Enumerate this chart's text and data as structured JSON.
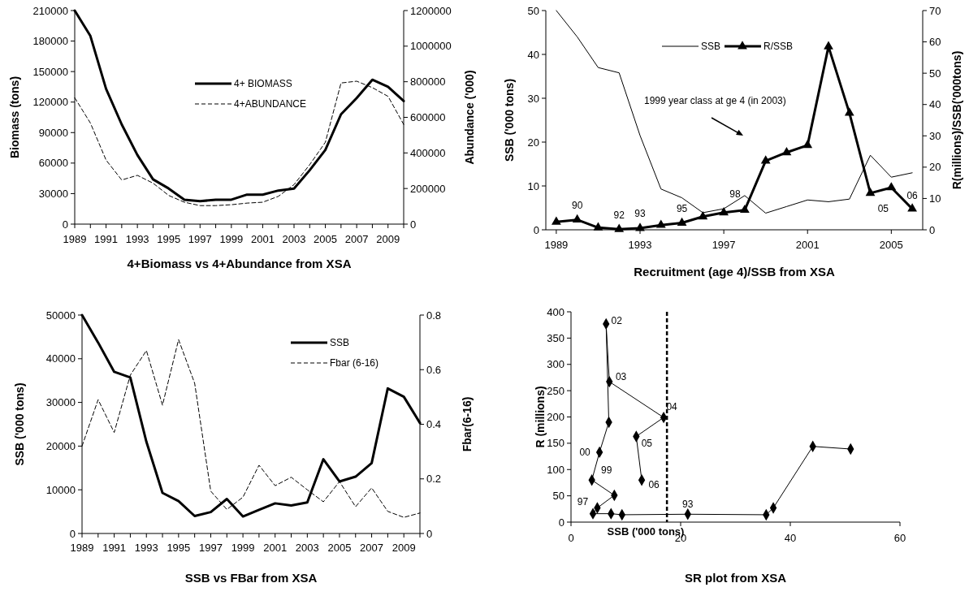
{
  "chart_data": [
    {
      "type": "line",
      "title": "4+Biomass vs 4+Abundance from XSA",
      "ylabel": "Biomass (tons)",
      "y2label": "Abundance ('000)",
      "x": [
        1989,
        1990,
        1991,
        1992,
        1993,
        1994,
        1995,
        1996,
        1997,
        1998,
        1999,
        2000,
        2001,
        2002,
        2003,
        2004,
        2005,
        2006,
        2007,
        2008,
        2009,
        2010
      ],
      "series": [
        {
          "name": "4+ BIOMASS",
          "color": "#000000",
          "line_style": "solid",
          "values": [
            210000,
            185000,
            133000,
            98000,
            68000,
            44000,
            35000,
            24000,
            22500,
            24000,
            24000,
            29000,
            29000,
            33000,
            35000,
            53000,
            73000,
            108000,
            124000,
            142000,
            135000,
            121000
          ]
        },
        {
          "name": "4+ABUNDANCE",
          "color": "#000000",
          "line_style": "dashed",
          "axis": "y2",
          "values": [
            710000,
            568000,
            360000,
            248000,
            274000,
            230000,
            161000,
            123000,
            104000,
            104000,
            109000,
            118000,
            123000,
            156000,
            222000,
            334000,
            460000,
            793000,
            803000,
            767000,
            718000,
            560000
          ]
        }
      ],
      "xlim": [
        1989,
        2010
      ],
      "xticks": [
        1989,
        {
          "value": 1990,
          "label": null
        },
        1991,
        {
          "value": 1992,
          "label": null
        },
        1993,
        {
          "value": 1994,
          "label": null
        },
        1995,
        {
          "value": 1996,
          "label": null
        },
        1997,
        {
          "value": 1998,
          "label": null
        },
        1999,
        {
          "value": 2000,
          "label": null
        },
        2001,
        {
          "value": 2002,
          "label": null
        },
        2003,
        {
          "value": 2004,
          "label": null
        },
        2005,
        {
          "value": 2006,
          "label": null
        },
        2007,
        {
          "value": 2008,
          "label": null
        },
        2009,
        {
          "value": 2010,
          "label": null
        }
      ],
      "ylim": [
        0,
        210000
      ],
      "yticks": [
        0,
        30000,
        60000,
        90000,
        120000,
        150000,
        180000,
        210000
      ],
      "y2lim": [
        0,
        1200000
      ],
      "y2ticks": [
        0,
        200000,
        400000,
        600000,
        800000,
        1000000,
        1200000
      ],
      "legend": "top"
    },
    {
      "type": "line",
      "title": "Recruitment (age 4)/SSB from XSA",
      "ylabel": "SSB ('000 tons)",
      "y2label": "R(millions)/SSB('000tons)",
      "annotations": [
        "1999 year class at ge 4 (in 2003)",
        {
          "text": "90",
          "x": 1990,
          "y": 2.3
        },
        {
          "text": "92",
          "x": 1992,
          "y": 0.1
        },
        {
          "text": "93",
          "x": 1993,
          "y": 0.4
        },
        {
          "text": "95",
          "x": 1995,
          "y": 1.6
        },
        {
          "text": "98",
          "x": 1998,
          "y": 4.5
        },
        {
          "text": "05",
          "x": 2005,
          "y": 9.6
        },
        {
          "text": "06",
          "x": 2006,
          "y": 4.8
        }
      ],
      "x": [
        1989,
        1990,
        1991,
        1992,
        1993,
        1994,
        1995,
        1996,
        1997,
        1998,
        1999,
        2000,
        2001,
        2002,
        2003,
        2004,
        2005,
        2006
      ],
      "series": [
        {
          "name": "SSB",
          "color": "#000000",
          "marker": "none",
          "values": [
            50,
            44,
            37,
            35.8,
            21.5,
            9.3,
            7.3,
            3.9,
            4.8,
            7.8,
            3.8,
            5.3,
            6.8,
            6.4,
            7,
            17,
            12,
            13
          ]
        },
        {
          "name": "R/SSB",
          "color": "#000000",
          "marker": "triangle",
          "axis": "y2",
          "values": [
            2.5,
            3.2,
            0.7,
            0.2,
            0.5,
            1.5,
            2.2,
            4.2,
            5.5,
            6.3,
            22,
            24.7,
            27,
            58.5,
            37.3,
            11.7,
            13.5,
            6.7
          ]
        }
      ],
      "xlim": [
        1988.5,
        2006.5
      ],
      "xticks": [
        1989,
        1993,
        1997,
        2001,
        2005
      ],
      "ylim": [
        0,
        50
      ],
      "yticks": [
        0,
        10,
        20,
        30,
        40,
        50
      ],
      "y2lim": [
        0,
        70
      ],
      "y2ticks": [
        0,
        10,
        20,
        30,
        40,
        50,
        60,
        70
      ],
      "legend": "top"
    },
    {
      "type": "line",
      "title": "SSB vs FBar from XSA",
      "ylabel": "SSB ('000 tons)",
      "y2label": "Fbar(6-16)",
      "x": [
        1989,
        1990,
        1991,
        1992,
        1993,
        1994,
        1995,
        1996,
        1997,
        1998,
        1999,
        2000,
        2001,
        2002,
        2003,
        2004,
        2005,
        2006,
        2007,
        2008,
        2009,
        2010
      ],
      "series": [
        {
          "name": "SSB",
          "color": "#000000",
          "line_style": "solid",
          "values": [
            50000,
            43700,
            37000,
            35700,
            21000,
            9300,
            7400,
            4000,
            4900,
            7900,
            3900,
            5400,
            6900,
            6400,
            7100,
            17000,
            11900,
            13000,
            16100,
            33200,
            31300,
            25300
          ]
        },
        {
          "name": "Fbar (6-16)",
          "color": "#000000",
          "line_style": "dashed",
          "axis": "y2",
          "values": [
            0.32,
            0.49,
            0.37,
            0.58,
            0.67,
            0.47,
            0.71,
            0.55,
            0.155,
            0.088,
            0.133,
            0.25,
            0.175,
            0.206,
            0.16,
            0.116,
            0.19,
            0.098,
            0.167,
            0.081,
            0.059,
            0.075
          ]
        }
      ],
      "xlim": [
        1989,
        2010
      ],
      "xticks": [
        1989,
        {
          "value": 1990,
          "label": null
        },
        1991,
        {
          "value": 1992,
          "label": null
        },
        1993,
        {
          "value": 1994,
          "label": null
        },
        1995,
        {
          "value": 1996,
          "label": null
        },
        1997,
        {
          "value": 1998,
          "label": null
        },
        1999,
        {
          "value": 2000,
          "label": null
        },
        2001,
        {
          "value": 2002,
          "label": null
        },
        2003,
        {
          "value": 2004,
          "label": null
        },
        2005,
        {
          "value": 2006,
          "label": null
        },
        2007,
        {
          "value": 2008,
          "label": null
        },
        2009,
        {
          "value": 2010,
          "label": null
        }
      ],
      "ylim": [
        0,
        50000
      ],
      "yticks": [
        0,
        10000,
        20000,
        30000,
        40000,
        50000
      ],
      "y2lim": [
        0,
        0.8
      ],
      "y2ticks": [
        0,
        0.2,
        0.4,
        0.6,
        0.8
      ],
      "legend": "top right"
    },
    {
      "type": "line",
      "title": "SR plot from XSA",
      "xlabel": "SSB ('000 tons)",
      "ylabel": "R (millions)",
      "marker": "diamond",
      "series": [
        {
          "color": "#000000",
          "x": [
            51,
            44.1,
            36.9,
            35.6,
            21.3,
            9.3,
            7.3,
            4,
            4.8,
            7.9,
            3.8,
            5.2,
            6.9,
            6.4,
            7,
            16.9,
            11.9,
            12.9
          ],
          "values": [
            139,
            144,
            27,
            14,
            15,
            14,
            16,
            16,
            27,
            51,
            80,
            133,
            190,
            377,
            267,
            199,
            163,
            80
          ]
        }
      ],
      "annotations": [
        {
          "text": "93",
          "x": 21.3,
          "y": 15
        },
        {
          "text": "97",
          "x": 4.8,
          "y": 27
        },
        {
          "text": "99",
          "x": 3.8,
          "y": 80
        },
        {
          "text": "00",
          "x": 5.2,
          "y": 133
        },
        {
          "text": "02",
          "x": 6.4,
          "y": 377
        },
        {
          "text": "03",
          "x": 6.9,
          "y": 267
        },
        {
          "text": "04",
          "x": 16.9,
          "y": 199
        },
        {
          "text": "05",
          "x": 11.9,
          "y": 163
        },
        {
          "text": "06",
          "x": 12.9,
          "y": 80
        }
      ],
      "xlim": [
        0,
        60
      ],
      "xticks": [
        0,
        20,
        40,
        60
      ],
      "ylim": [
        0,
        400
      ],
      "yticks": [
        0,
        50,
        100,
        150,
        200,
        250,
        300,
        350,
        400
      ],
      "ref_lines": [
        {
          "axis": "x",
          "value": 17.5,
          "color": "#000000",
          "line_style": "dashed"
        }
      ]
    }
  ]
}
